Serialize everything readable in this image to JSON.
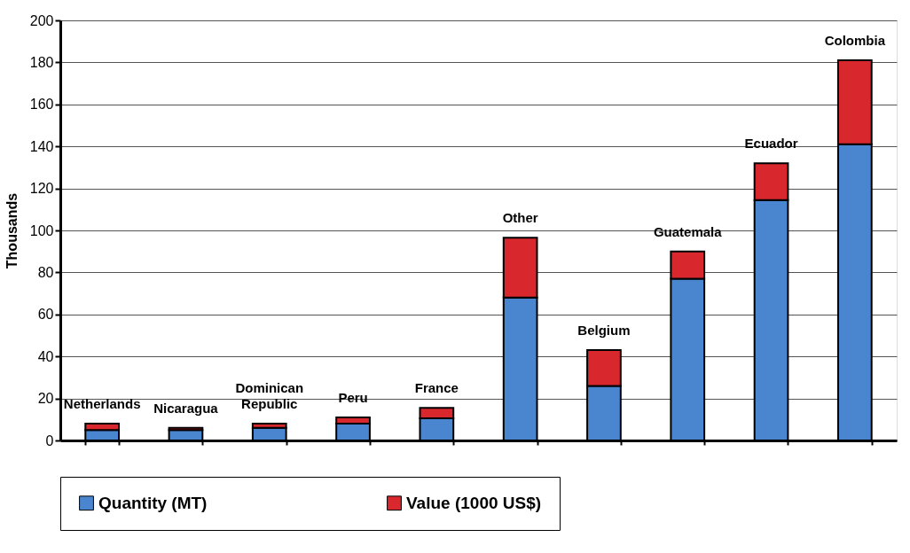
{
  "chart_data": {
    "type": "bar",
    "stacked": true,
    "categories": [
      "Netherlands",
      "Nicaragua",
      "Dominican Republic",
      "Peru",
      "France",
      "Other",
      "Belgium",
      "Guatemala",
      "Ecuador",
      "Colombia"
    ],
    "series": [
      {
        "name": "Quantity (MT)",
        "color": "#4a86d0",
        "values": [
          5,
          5,
          6,
          8,
          10.5,
          68,
          26,
          77,
          114.5,
          141
        ]
      },
      {
        "name": "Value (1000 US$)",
        "color": "#d8282e",
        "values": [
          3,
          1,
          2,
          3,
          5,
          28.5,
          17,
          13,
          17.5,
          40
        ]
      }
    ],
    "ylabel": "Thousands",
    "ylim": [
      0,
      200
    ],
    "yticks": [
      0,
      20,
      40,
      60,
      80,
      100,
      120,
      140,
      160,
      180,
      200
    ],
    "grid": "y",
    "legend": "bottom",
    "tick_labels": "y"
  }
}
